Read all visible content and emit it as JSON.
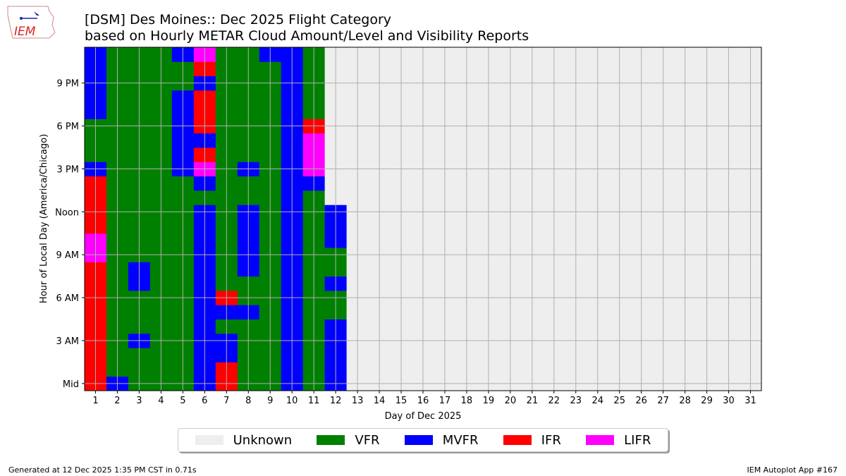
{
  "title_line1": "[DSM] Des Moines:: Dec 2025 Flight Category",
  "title_line2": "based on Hourly METAR Cloud Amount/Level and Visibility Reports",
  "logo_text": "IEM",
  "footer_left": "Generated at 12 Dec 2025 1:35 PM CST in 0.71s",
  "footer_right": "IEM Autoplot App #167",
  "chart_data": {
    "type": "heatmap",
    "xlabel": "Day of Dec 2025",
    "ylabel": "Hour of Local Day (America/Chicago)",
    "x_ticks": [
      "1",
      "2",
      "3",
      "4",
      "5",
      "6",
      "7",
      "8",
      "9",
      "10",
      "11",
      "12",
      "13",
      "14",
      "15",
      "16",
      "17",
      "18",
      "19",
      "20",
      "21",
      "22",
      "23",
      "24",
      "25",
      "26",
      "27",
      "28",
      "29",
      "30",
      "31"
    ],
    "y_ticks": [
      {
        "hour": 0,
        "label": "Mid"
      },
      {
        "hour": 3,
        "label": "3 AM"
      },
      {
        "hour": 6,
        "label": "6 AM"
      },
      {
        "hour": 9,
        "label": "9 AM"
      },
      {
        "hour": 12,
        "label": "Noon"
      },
      {
        "hour": 15,
        "label": "3 PM"
      },
      {
        "hour": 18,
        "label": "6 PM"
      },
      {
        "hour": 21,
        "label": "9 PM"
      }
    ],
    "grid": true,
    "legend_placement": "bottom-center",
    "categories": [
      {
        "code": "U",
        "label": "Unknown",
        "color": "#EEEEEE"
      },
      {
        "code": "V",
        "label": "VFR",
        "color": "#008000"
      },
      {
        "code": "M",
        "label": "MVFR",
        "color": "#0000FF"
      },
      {
        "code": "I",
        "label": "IFR",
        "color": "#FF0000"
      },
      {
        "code": "L",
        "label": "LIFR",
        "color": "#FF00FF"
      }
    ],
    "hourly_by_day_hour0_to_23": {
      "1": "IIIIIIIIILLIIIIMVVVMMMMM",
      "2": "MVVVVVVVVVVVVVVVVVVVVVVV",
      "3": "VVVMVVVMMVVVVVVVVVVVVVVV",
      "4": "VVVVVVVVVVVVVVVVVVVVVVVV",
      "5": "VVVVVVVVVVVVVVVMMMMMMVVM",
      "6": "MMMMMMMMMMMMMVMLIMIIIMIL",
      "7": "IIMMVMIVVVVVVVVVVVVVVVVV",
      "8": "VVVVVMVVMMMMMVVMVVVVVVVV",
      "9": "VVVVVVVVVVVVVVVVVVVVVVVM",
      "10": "MMMMMMMMMMMMMMMMMMMMMMMM",
      "11": "VVVVVVVVVVVVVVMLLLIVVVVV",
      "12": "MMMMMVVMVVMMMUUUUUUUUUUU",
      "13": "UUUUUUUUUUUUUUUUUUUUUUUU",
      "14": "UUUUUUUUUUUUUUUUUUUUUUUU",
      "15": "UUUUUUUUUUUUUUUUUUUUUUUU",
      "16": "UUUUUUUUUUUUUUUUUUUUUUUU",
      "17": "UUUUUUUUUUUUUUUUUUUUUUUU",
      "18": "UUUUUUUUUUUUUUUUUUUUUUUU",
      "19": "UUUUUUUUUUUUUUUUUUUUUUUU",
      "20": "UUUUUUUUUUUUUUUUUUUUUUUU",
      "21": "UUUUUUUUUUUUUUUUUUUUUUUU",
      "22": "UUUUUUUUUUUUUUUUUUUUUUUU",
      "23": "UUUUUUUUUUUUUUUUUUUUUUUU",
      "24": "UUUUUUUUUUUUUUUUUUUUUUUU",
      "25": "UUUUUUUUUUUUUUUUUUUUUUUU",
      "26": "UUUUUUUUUUUUUUUUUUUUUUUU",
      "27": "UUUUUUUUUUUUUUUUUUUUUUUU",
      "28": "UUUUUUUUUUUUUUUUUUUUUUUU",
      "29": "UUUUUUUUUUUUUUUUUUUUUUUU",
      "30": "UUUUUUUUUUUUUUUUUUUUUUUU",
      "31": "UUUUUUUUUUUUUUUUUUUUUUUU"
    }
  }
}
